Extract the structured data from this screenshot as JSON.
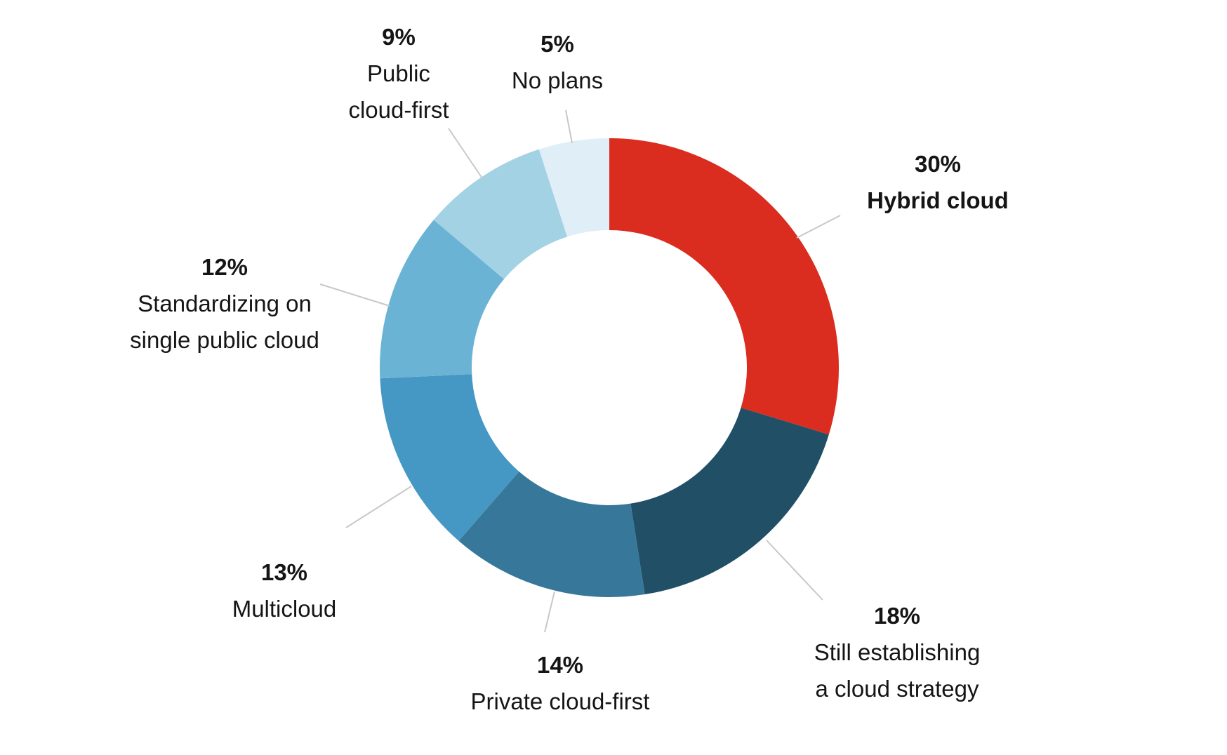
{
  "chart_data": {
    "type": "pie",
    "donut": true,
    "legend": "none",
    "slices": [
      {
        "category": "Hybrid cloud",
        "value": 30,
        "label": "30%",
        "lines": [
          "Hybrid cloud"
        ],
        "bold_label": true,
        "color": "#da2d20"
      },
      {
        "category": "Still establishing a cloud strategy",
        "value": 18,
        "label": "18%",
        "lines": [
          "Still establishing",
          "a cloud strategy"
        ],
        "bold_label": false,
        "color": "#214f66"
      },
      {
        "category": "Private cloud-first",
        "value": 14,
        "label": "14%",
        "lines": [
          "Private cloud-first"
        ],
        "bold_label": false,
        "color": "#36779a"
      },
      {
        "category": "Multicloud",
        "value": 13,
        "label": "13%",
        "lines": [
          "Multicloud"
        ],
        "bold_label": false,
        "color": "#4598c3"
      },
      {
        "category": "Standardizing on single public cloud",
        "value": 12,
        "label": "12%",
        "lines": [
          "Standardizing on",
          "single public cloud"
        ],
        "bold_label": false,
        "color": "#6ab3d4"
      },
      {
        "category": "Public cloud-first",
        "value": 9,
        "label": "9%",
        "lines": [
          "Public",
          "cloud-first"
        ],
        "bold_label": false,
        "color": "#a4d2e5"
      },
      {
        "category": "No plans",
        "value": 5,
        "label": "5%",
        "lines": [
          "No plans"
        ],
        "bold_label": false,
        "color": "#e0eff7"
      }
    ]
  }
}
